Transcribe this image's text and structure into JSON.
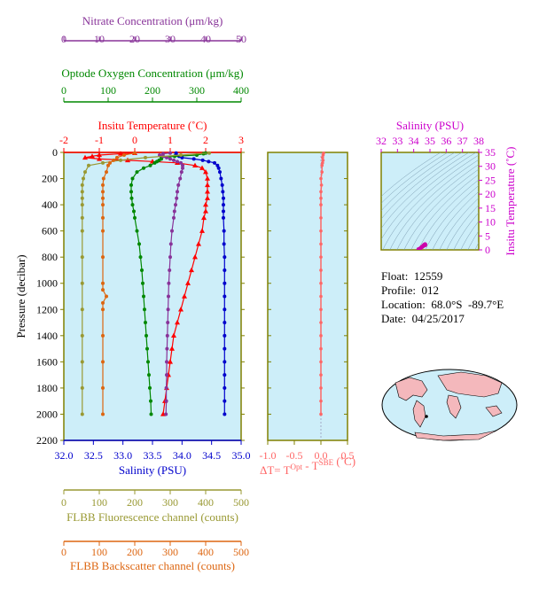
{
  "float_info": {
    "float": "Float:  12559",
    "profile": "Profile:  012",
    "location": "Location:  68.0°S  -89.7°E",
    "date": "Date:  04/25/2017"
  },
  "colors": {
    "panel_bg": "#cdeef9",
    "axis_frame": "#808000",
    "temperature": "#ff0000",
    "salinity": "#0000cc",
    "oxygen": "#008800",
    "nitrate": "#883399",
    "fluorescence": "#999933",
    "backscatter": "#dd6611",
    "delta_t": "#ff6666",
    "ts_axis": "#cc00cc"
  },
  "chart_data": [
    {
      "type": "line",
      "name": "main-profile",
      "ylabel": "Pressure (decibar)",
      "y_ticks": [
        0,
        200,
        400,
        600,
        800,
        1000,
        1200,
        1400,
        1600,
        1800,
        2000,
        2200
      ],
      "ylim": [
        2200,
        0
      ],
      "grid": false,
      "axes": {
        "nitrate": {
          "label": "Nitrate Concentration (μm/kg)",
          "ticks": [
            0,
            10,
            20,
            30,
            40,
            50
          ],
          "range": [
            0,
            50
          ],
          "position": "top"
        },
        "oxygen": {
          "label": "Optode Oxygen Concentration (μm/kg)",
          "ticks": [
            0,
            100,
            200,
            300,
            400
          ],
          "range": [
            0,
            400
          ],
          "position": "top"
        },
        "temperature": {
          "label": "Insitu Temperature (˚C)",
          "ticks": [
            -2,
            -1,
            0,
            1,
            2,
            3
          ],
          "range": [
            -2,
            3
          ],
          "position": "top"
        },
        "salinity": {
          "label": "Salinity (PSU)",
          "ticks": [
            "32.0",
            "32.5",
            "33.0",
            "33.5",
            "34.0",
            "34.5",
            "35.0"
          ],
          "range": [
            32,
            35
          ],
          "position": "bottom"
        },
        "fluorescence": {
          "label": "FLBB Fluorescence channel (counts)",
          "ticks": [
            0,
            100,
            200,
            300,
            400,
            500
          ],
          "range": [
            0,
            500
          ],
          "position": "bottom"
        },
        "backscatter": {
          "label": "FLBB Backscatter channel (counts)",
          "ticks": [
            0,
            100,
            200,
            300,
            400,
            500
          ],
          "range": [
            0,
            500
          ],
          "position": "bottom"
        }
      },
      "series": [
        {
          "key": "temperature",
          "axis": "temperature",
          "marker": "triangle",
          "pressure": [
            5,
            10,
            20,
            30,
            40,
            50,
            60,
            70,
            80,
            100,
            120,
            150,
            200,
            250,
            300,
            350,
            400,
            450,
            500,
            600,
            700,
            800,
            900,
            1000,
            1100,
            1200,
            1300,
            1400,
            1500,
            1600,
            1700,
            1800,
            1900,
            2000
          ],
          "values": [
            0.0,
            -0.4,
            -1.0,
            -1.2,
            -1.4,
            -1.0,
            -0.2,
            0.5,
            1.2,
            1.7,
            1.9,
            2.0,
            2.05,
            2.05,
            2.05,
            2.05,
            2.0,
            2.0,
            1.95,
            1.9,
            1.8,
            1.7,
            1.6,
            1.5,
            1.4,
            1.3,
            1.2,
            1.1,
            1.05,
            1.0,
            0.95,
            0.9,
            0.85,
            0.8
          ]
        },
        {
          "key": "salinity",
          "axis": "salinity",
          "marker": "circle",
          "pressure": [
            5,
            10,
            20,
            30,
            40,
            50,
            60,
            70,
            80,
            100,
            120,
            150,
            200,
            250,
            300,
            350,
            400,
            450,
            500,
            600,
            700,
            800,
            900,
            1000,
            1100,
            1200,
            1300,
            1400,
            1500,
            1600,
            1700,
            1800,
            1900,
            2000
          ],
          "values": [
            33.9,
            33.9,
            33.9,
            33.95,
            34.0,
            34.2,
            34.35,
            34.45,
            34.55,
            34.6,
            34.62,
            34.64,
            34.66,
            34.68,
            34.69,
            34.7,
            34.7,
            34.7,
            34.7,
            34.71,
            34.71,
            34.72,
            34.72,
            34.72,
            34.72,
            34.72,
            34.72,
            34.72,
            34.72,
            34.72,
            34.72,
            34.72,
            34.72,
            34.72
          ]
        },
        {
          "key": "oxygen",
          "axis": "oxygen",
          "marker": "circle",
          "pressure": [
            5,
            10,
            20,
            30,
            40,
            50,
            60,
            70,
            80,
            100,
            120,
            150,
            200,
            250,
            300,
            350,
            400,
            450,
            500,
            600,
            700,
            800,
            900,
            1000,
            1100,
            1200,
            1300,
            1400,
            1500,
            1600,
            1700,
            1800,
            1900,
            2000
          ],
          "values": [
            320,
            315,
            300,
            250,
            220,
            220,
            215,
            210,
            205,
            195,
            180,
            165,
            155,
            152,
            152,
            153,
            155,
            158,
            160,
            165,
            170,
            173,
            176,
            178,
            180,
            182,
            184,
            186,
            188,
            190,
            192,
            194,
            196,
            197
          ]
        },
        {
          "key": "nitrate",
          "axis": "nitrate",
          "marker": "circle",
          "pressure": [
            5,
            10,
            20,
            30,
            40,
            50,
            60,
            70,
            80,
            100,
            120,
            150,
            200,
            250,
            300,
            350,
            400,
            450,
            500,
            600,
            700,
            800,
            900,
            1000,
            1100,
            1200,
            1300,
            1400,
            1500,
            1600,
            1700,
            1800,
            1900,
            2000
          ],
          "values": [
            30,
            28,
            27,
            28,
            29,
            30,
            31,
            32,
            33,
            33.5,
            33.5,
            33.2,
            32.8,
            32.3,
            32,
            31.8,
            31.5,
            31.2,
            31,
            30.5,
            30.2,
            30,
            29.8,
            29.6,
            29.5,
            29.4,
            29.3,
            29.2,
            29.1,
            29.0,
            29.0,
            28.9,
            28.9,
            28.8
          ]
        },
        {
          "key": "fluorescence",
          "axis": "fluorescence",
          "marker": "circle",
          "pressure": [
            5,
            20,
            40,
            60,
            80,
            100,
            150,
            200,
            250,
            300,
            350,
            400,
            500,
            600,
            800,
            1000,
            1200,
            1400,
            1600,
            1800,
            2000
          ],
          "values": [
            410,
            330,
            230,
            160,
            110,
            70,
            60,
            55,
            52,
            52,
            52,
            52,
            52,
            52,
            52,
            52,
            52,
            52,
            52,
            52,
            52
          ]
        },
        {
          "key": "backscatter",
          "axis": "backscatter",
          "marker": "circle",
          "pressure": [
            5,
            20,
            40,
            60,
            80,
            100,
            150,
            200,
            250,
            300,
            350,
            400,
            500,
            600,
            800,
            1000,
            1050,
            1100,
            1150,
            1200,
            1400,
            1600,
            1800,
            2000
          ],
          "values": [
            200,
            170,
            150,
            140,
            130,
            125,
            120,
            112,
            110,
            110,
            110,
            110,
            110,
            110,
            110,
            110,
            110,
            120,
            110,
            110,
            110,
            110,
            110,
            110
          ]
        }
      ]
    },
    {
      "type": "line",
      "name": "delta-t",
      "xlabel": "ΔT= T",
      "xlabel_sup1": "Opt",
      "xlabel_mid": " - T",
      "xlabel_sup2": "SBE",
      "xlabel_tail": " (˚C)",
      "x_ticks": [
        "-1.0",
        "-0.5",
        "0.0",
        "0.5"
      ],
      "xlim": [
        -1.0,
        0.5
      ],
      "ylim": [
        2200,
        0
      ],
      "pressure": [
        5,
        20,
        40,
        60,
        80,
        100,
        150,
        200,
        250,
        300,
        350,
        400,
        500,
        600,
        700,
        800,
        900,
        1000,
        1100,
        1200,
        1300,
        1400,
        1500,
        1600,
        1700,
        1800,
        1900,
        2000
      ],
      "values": [
        0.05,
        0.04,
        0.03,
        0.04,
        0.03,
        0.02,
        0.02,
        0.0,
        0.01,
        0.0,
        0.0,
        0.0,
        0.0,
        0.0,
        0.0,
        0.0,
        0.0,
        0.0,
        0.0,
        0.0,
        0.0,
        0.0,
        0.0,
        0.0,
        0.0,
        0.0,
        0.0,
        0.0
      ]
    },
    {
      "type": "scatter",
      "name": "ts-diagram",
      "xlabel": "Salinity (PSU)",
      "ylabel": "Insitu Temperature (˚C)",
      "x_ticks": [
        32,
        33,
        34,
        35,
        36,
        37,
        38
      ],
      "xlim": [
        32,
        38
      ],
      "y_ticks": [
        0,
        5,
        10,
        15,
        20,
        25,
        30,
        35
      ],
      "ylim": [
        0,
        35
      ],
      "points": [
        [
          34.5,
          1.0
        ],
        [
          34.6,
          1.5
        ],
        [
          34.7,
          2.0
        ],
        [
          34.65,
          1.8
        ],
        [
          34.4,
          0.5
        ],
        [
          34.3,
          0.2
        ],
        [
          34.55,
          1.2
        ],
        [
          34.7,
          1.7
        ]
      ]
    }
  ]
}
